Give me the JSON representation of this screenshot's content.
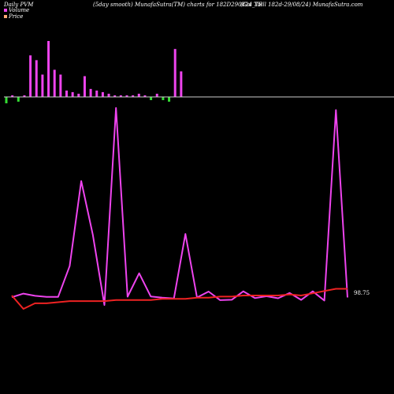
{
  "header": {
    "left": "Daily PVM",
    "center": "(5day smooth) MunafaSutra(TM) charts for 182D290824_TB",
    "right": "(Goi  Tbill 182d-29/08/24) MunafaSutra.com"
  },
  "legend": [
    {
      "label": "Volume",
      "color": "#ee44ee"
    },
    {
      "label": "Price",
      "color": "#ffaa77"
    }
  ],
  "last_value_label": "98.75",
  "chart_data": {
    "type": "line",
    "title": "",
    "xlabel": "",
    "ylabel": "",
    "grid": false,
    "legend_position": "top-left",
    "volume_bars": {
      "values": [
        -4,
        1,
        -3,
        1,
        26,
        23,
        14,
        35,
        17,
        14,
        4,
        3,
        2,
        13,
        5,
        4,
        3,
        2,
        1,
        1,
        1,
        1,
        2,
        1,
        -2,
        2,
        -2,
        -3,
        30,
        16
      ],
      "range": [
        -4,
        35
      ],
      "positive_color": "#ee44ee",
      "negative_color": "#33dd33"
    },
    "series": [
      {
        "color": "#ee44ee",
        "values": [
          76,
          94,
          83,
          78,
          78,
          228,
          643,
          381,
          38,
          1000,
          79,
          193,
          80,
          74,
          70,
          385,
          75,
          104,
          62,
          64,
          105,
          72,
          81,
          71,
          97,
          63,
          105,
          60,
          990,
          75
        ],
        "range": [
          0,
          1000
        ]
      },
      {
        "color": "#ee2222",
        "values": [
          98.42,
          98.36,
          98.385,
          98.385,
          98.39,
          98.395,
          98.395,
          98.395,
          98.395,
          98.4,
          98.4,
          98.4,
          98.4,
          98.405,
          98.405,
          98.405,
          98.41,
          98.41,
          98.415,
          98.415,
          98.42,
          98.42,
          98.42,
          98.42,
          98.425,
          98.42,
          98.43,
          98.44,
          98.45,
          98.45
        ],
        "range": [
          98.36,
          98.48
        ]
      }
    ]
  }
}
